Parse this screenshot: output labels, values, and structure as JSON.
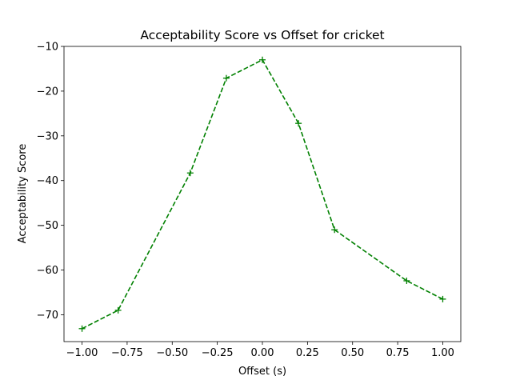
{
  "chart_data": {
    "type": "line",
    "title": "Acceptability Score vs Offset for cricket",
    "xlabel": "Offset (s)",
    "ylabel": "Acceptability Score",
    "xlim": [
      -1.1,
      1.1
    ],
    "ylim": [
      -76,
      -10
    ],
    "x_ticks": [
      -1.0,
      -0.75,
      -0.5,
      -0.25,
      0.0,
      0.25,
      0.5,
      0.75,
      1.0
    ],
    "x_tick_labels": [
      "−1.00",
      "−0.75",
      "−0.50",
      "−0.25",
      "0.00",
      "0.25",
      "0.50",
      "0.75",
      "1.00"
    ],
    "y_ticks": [
      -70,
      -60,
      -50,
      -40,
      -30,
      -20,
      -10
    ],
    "y_tick_labels": [
      "−70",
      "−60",
      "−50",
      "−40",
      "−30",
      "−20",
      "−10"
    ],
    "grid": false,
    "legend": null,
    "series": [
      {
        "color": "#008000",
        "line_style": "dashed",
        "marker": "plus",
        "x": [
          -1.0,
          -0.8,
          -0.4,
          -0.2,
          0.0,
          0.2,
          0.4,
          0.8,
          1.0
        ],
        "y": [
          -73.1,
          -69.0,
          -38.3,
          -17.1,
          -13.0,
          -27.2,
          -51.0,
          -62.4,
          -66.5
        ]
      }
    ]
  }
}
